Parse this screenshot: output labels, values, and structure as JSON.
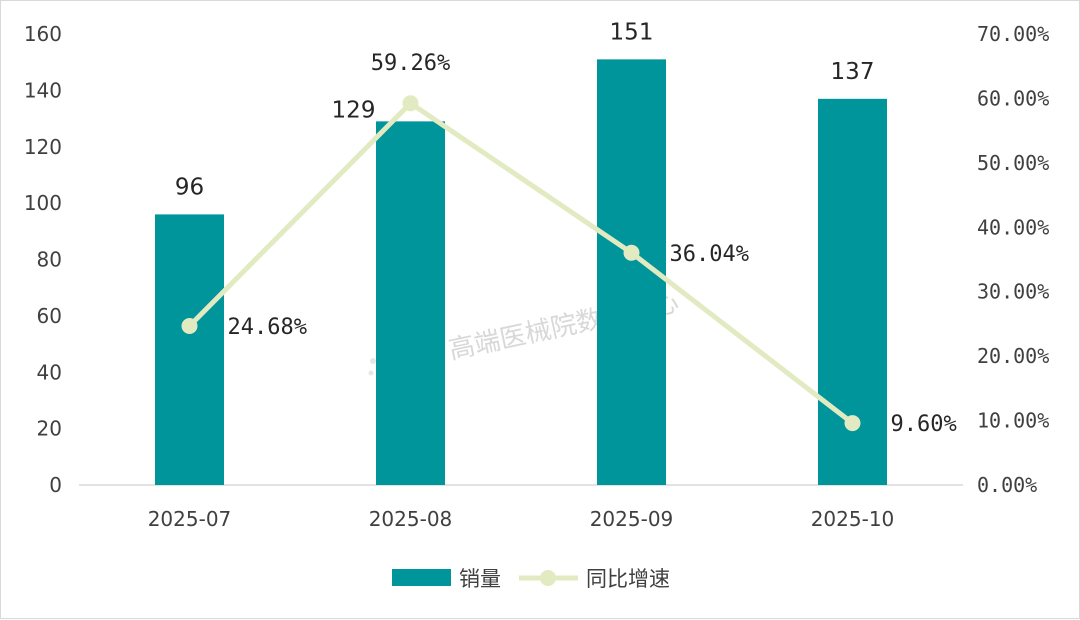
{
  "chart_data": {
    "type": "bar+line",
    "categories": [
      "2025-07",
      "2025-08",
      "2025-09",
      "2025-10"
    ],
    "series": [
      {
        "name": "销量",
        "type": "bar",
        "axis": "left",
        "values": [
          96,
          129,
          151,
          137
        ],
        "labels": [
          "96",
          "129",
          "151",
          "137"
        ],
        "color": "#00949b"
      },
      {
        "name": "同比增速",
        "type": "line",
        "axis": "right",
        "values": [
          24.68,
          59.26,
          36.04,
          9.6
        ],
        "labels": [
          "24.68%",
          "59.26%",
          "36.04%",
          "9.60%"
        ],
        "color": "#e2eac2"
      }
    ],
    "y_left": {
      "min": 0,
      "max": 160,
      "step": 20,
      "ticks": [
        "0",
        "20",
        "40",
        "60",
        "80",
        "100",
        "120",
        "140",
        "160"
      ]
    },
    "y_right": {
      "min": 0,
      "max": 70,
      "step": 10,
      "ticks": [
        "0.00%",
        "10.00%",
        "20.00%",
        "30.00%",
        "40.00%",
        "50.00%",
        "60.00%",
        "70.00%"
      ]
    },
    "legend": {
      "position": "bottom",
      "entries": [
        "销量",
        "同比增速"
      ]
    },
    "grid": false,
    "watermark": "高端医械院数据中心"
  }
}
